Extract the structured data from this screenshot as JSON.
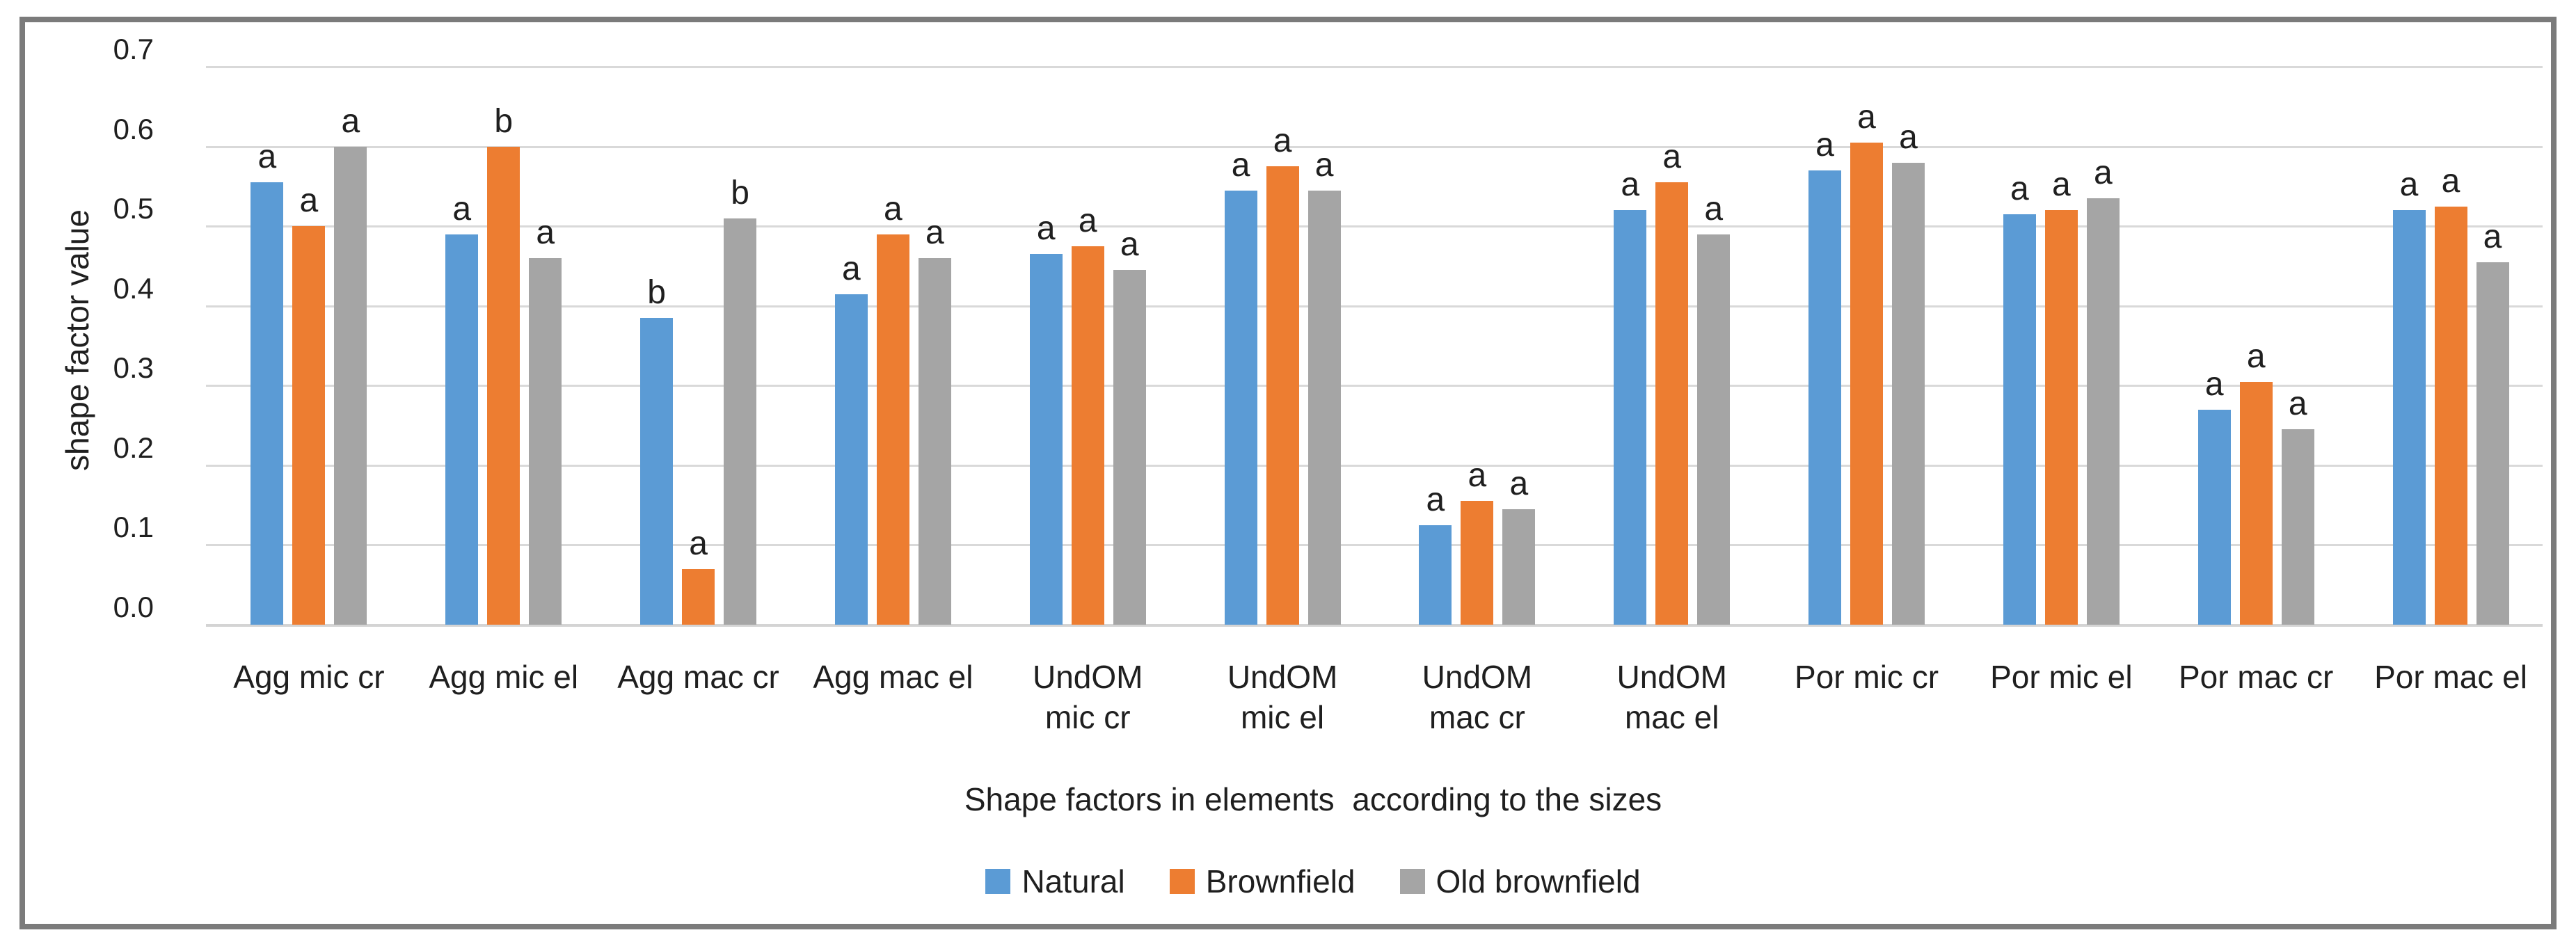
{
  "chart_data": {
    "type": "bar",
    "title": "",
    "xlabel": "Shape factors in elements  according to the sizes",
    "ylabel": "shape factor value",
    "ylim": [
      0.0,
      0.7
    ],
    "yticks": [
      "0.0",
      "0.1",
      "0.2",
      "0.3",
      "0.4",
      "0.5",
      "0.6",
      "0.7"
    ],
    "grid": true,
    "legend_position": "bottom",
    "categories": [
      "Agg mic cr",
      "Agg mic el",
      "Agg mac cr",
      "Agg mac el",
      "UndOM mic cr",
      "UndOM mic el",
      "UndOM mac cr",
      "UndOM mac el",
      "Por mic cr",
      "Por mic el",
      "Por mac cr",
      "Por mac el"
    ],
    "category_label_lines": [
      [
        "Agg mic cr"
      ],
      [
        "Agg mic el"
      ],
      [
        "Agg mac cr"
      ],
      [
        "Agg mac el"
      ],
      [
        "UndOM",
        "mic cr"
      ],
      [
        "UndOM",
        "mic el"
      ],
      [
        "UndOM",
        "mac cr"
      ],
      [
        "UndOM",
        "mac el"
      ],
      [
        "Por mic cr"
      ],
      [
        "Por mic el"
      ],
      [
        "Por mac cr"
      ],
      [
        "Por mac el"
      ]
    ],
    "series": [
      {
        "name": "Natural",
        "color": "#5B9BD5",
        "values": [
          0.555,
          0.49,
          0.385,
          0.415,
          0.465,
          0.545,
          0.125,
          0.52,
          0.57,
          0.515,
          0.27,
          0.52
        ],
        "letters": [
          "a",
          "a",
          "b",
          "a",
          "a",
          "a",
          "a",
          "a",
          "a",
          "a",
          "a",
          "a"
        ]
      },
      {
        "name": "Brownfield",
        "color": "#ED7D31",
        "values": [
          0.5,
          0.6,
          0.07,
          0.49,
          0.475,
          0.575,
          0.155,
          0.555,
          0.605,
          0.52,
          0.305,
          0.525
        ],
        "letters": [
          "a",
          "b",
          "a",
          "a",
          "a",
          "a",
          "a",
          "a",
          "a",
          "a",
          "a",
          "a"
        ]
      },
      {
        "name": "Old brownfield",
        "color": "#A5A5A5",
        "values": [
          0.6,
          0.46,
          0.51,
          0.46,
          0.445,
          0.545,
          0.145,
          0.49,
          0.58,
          0.535,
          0.245,
          0.455
        ],
        "letters": [
          "a",
          "a",
          "b",
          "a",
          "a",
          "a",
          "a",
          "a",
          "a",
          "a",
          "a",
          "a"
        ]
      }
    ],
    "colors": {
      "gridline": "#D9D9D9",
      "frame_border": "#7B7B7B",
      "text": "#1F1F1F"
    }
  }
}
